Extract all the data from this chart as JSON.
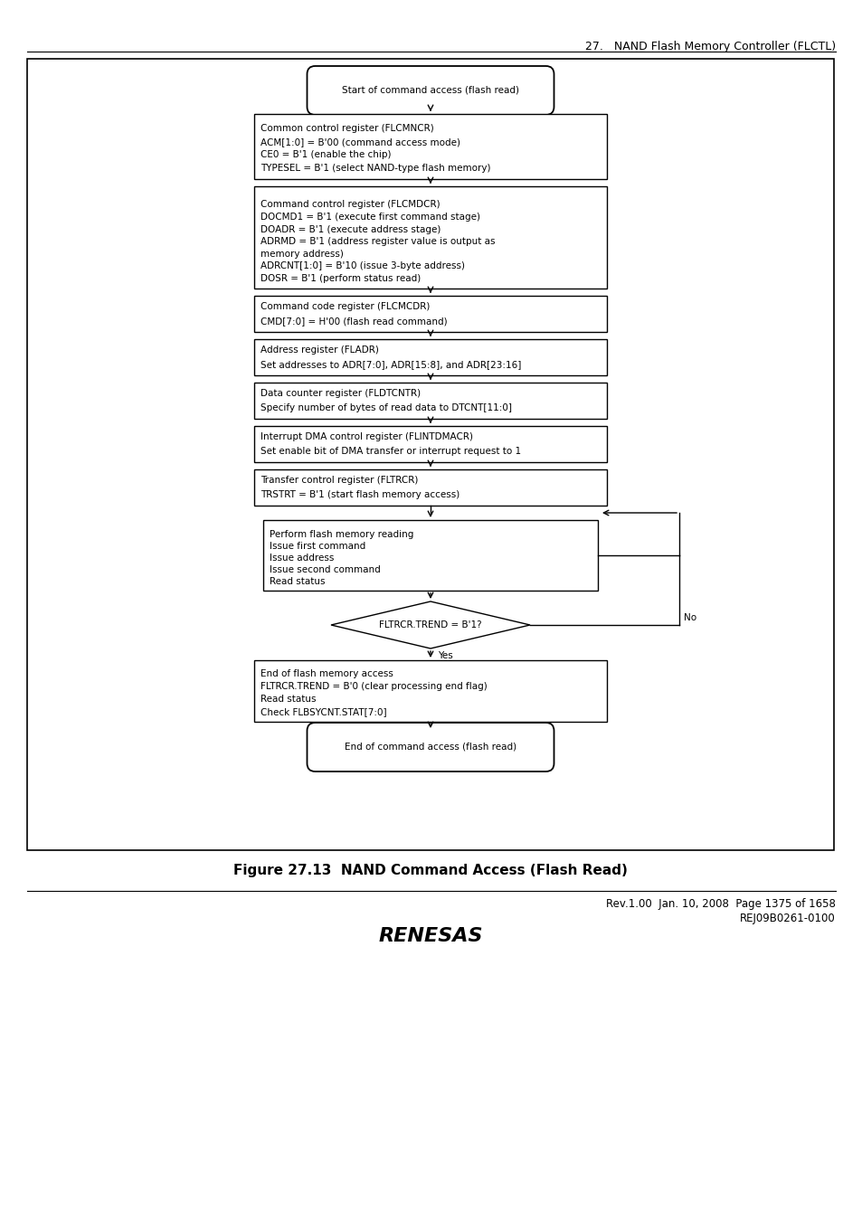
{
  "page_header": "27.   NAND Flash Memory Controller (FLCTL)",
  "figure_caption": "Figure 27.13  NAND Command Access (Flash Read)",
  "footer_line1": "Rev.1.00  Jan. 10, 2008  Page 1375 of 1658",
  "footer_line2": "REJ09B0261-0100",
  "start_label": "Start of command access (flash read)",
  "end_label": "End of command access (flash read)",
  "box1_lines": [
    "Common control register (FLCMNCR)",
    "ACM[1:0] = B'00 (command access mode)",
    "CE0 = B'1 (enable the chip)",
    "TYPESEL = B'1 (select NAND-type flash memory)"
  ],
  "box2_lines": [
    "Command control register (FLCMDCR)",
    "DOCMD1 = B'1 (execute first command stage)",
    "DOADR = B'1 (execute address stage)",
    "ADRMD = B'1 (address register value is output as",
    "memory address)",
    "ADRCNT[1:0] = B'10 (issue 3-byte address)",
    "DOSR = B'1 (perform status read)"
  ],
  "box3_lines": [
    "Command code register (FLCMCDR)",
    "CMD[7:0] = H'00 (flash read command)"
  ],
  "box4_lines": [
    "Address register (FLADR)",
    "Set addresses to ADR[7:0], ADR[15:8], and ADR[23:16]"
  ],
  "box5_lines": [
    "Data counter register (FLDTCNTR)",
    "Specify number of bytes of read data to DTCNT[11:0]"
  ],
  "box6_lines": [
    "Interrupt DMA control register (FLINTDMACR)",
    "Set enable bit of DMA transfer or interrupt request to 1"
  ],
  "box7_lines": [
    "Transfer control register (FLTRCR)",
    "TRSTRT = B'1 (start flash memory access)"
  ],
  "box8_lines": [
    "Perform flash memory reading",
    "Issue first command",
    "Issue address",
    "Issue second command",
    "Read status"
  ],
  "diamond_label": "FLTRCR.TREND = B'1?",
  "diamond_yes": "Yes",
  "diamond_no": "No",
  "box9_lines": [
    "End of flash memory access",
    "FLTRCR.TREND = B'0 (clear processing end flag)",
    "Read status",
    "Check FLBSYCNT.STAT[7:0]"
  ],
  "bg_color": "#ffffff",
  "box_color": "#ffffff",
  "border_color": "#000000",
  "text_color": "#000000",
  "font_size": 7.5,
  "caption_font_size": 11,
  "header_font_size": 9,
  "footer_font_size": 8.5,
  "logo_font_size": 16
}
